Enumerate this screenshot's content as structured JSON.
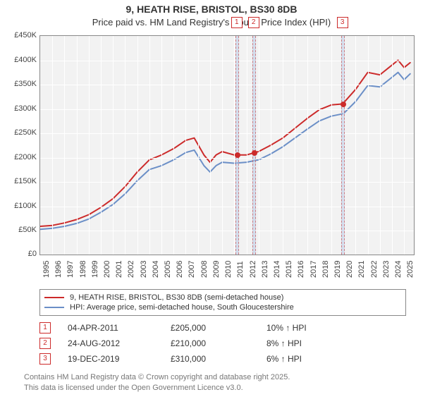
{
  "title_line1": "9, HEATH RISE, BRISTOL, BS30 8DB",
  "title_line2": "Price paid vs. HM Land Registry's House Price Index (HPI)",
  "chart": {
    "type": "line",
    "background_color": "#f2f2f2",
    "grid_color": "#ffffff",
    "border_color": "#888888",
    "x_years": [
      1995,
      1996,
      1997,
      1998,
      1999,
      2000,
      2001,
      2002,
      2003,
      2004,
      2005,
      2006,
      2007,
      2008,
      2009,
      2010,
      2011,
      2012,
      2013,
      2014,
      2015,
      2016,
      2017,
      2018,
      2019,
      2020,
      2021,
      2022,
      2023,
      2024,
      2025
    ],
    "xlim": [
      1995,
      2025.8
    ],
    "ylim": [
      0,
      450000
    ],
    "ytick_step": 50000,
    "ytick_labels": [
      "£0",
      "£50K",
      "£100K",
      "£150K",
      "£200K",
      "£250K",
      "£300K",
      "£350K",
      "£400K",
      "£450K"
    ],
    "series": [
      {
        "name": "9, HEATH RISE, BRISTOL, BS30 8DB (semi-detached house)",
        "color": "#cc2a2a",
        "width": 2,
        "x": [
          1995,
          1996,
          1997,
          1998,
          1999,
          2000,
          2001,
          2002,
          2003,
          2004,
          2005,
          2006,
          2007,
          2007.7,
          2008.5,
          2009,
          2009.5,
          2010,
          2011,
          2012,
          2012.7,
          2013,
          2014,
          2015,
          2016,
          2017,
          2018,
          2019,
          2019.97,
          2020,
          2021,
          2022,
          2023,
          2024,
          2024.5,
          2025,
          2025.5
        ],
        "y": [
          58000,
          60000,
          65000,
          72000,
          82000,
          97000,
          115000,
          140000,
          170000,
          195000,
          205000,
          218000,
          235000,
          240000,
          205000,
          190000,
          205000,
          212000,
          205000,
          205000,
          210000,
          212000,
          225000,
          240000,
          260000,
          280000,
          298000,
          308000,
          310000,
          312000,
          340000,
          375000,
          370000,
          390000,
          400000,
          385000,
          395000
        ]
      },
      {
        "name": "HPI: Average price, semi-detached house, South Gloucestershire",
        "color": "#6b8fc7",
        "width": 2,
        "x": [
          1995,
          1996,
          1997,
          1998,
          1999,
          2000,
          2001,
          2002,
          2003,
          2004,
          2005,
          2006,
          2007,
          2007.7,
          2008.5,
          2009,
          2009.5,
          2010,
          2011,
          2012,
          2013,
          2014,
          2015,
          2016,
          2017,
          2018,
          2019,
          2020,
          2021,
          2022,
          2023,
          2024,
          2024.5,
          2025,
          2025.5
        ],
        "y": [
          52000,
          54000,
          58000,
          64000,
          73000,
          87000,
          103000,
          125000,
          152000,
          175000,
          183000,
          195000,
          210000,
          215000,
          183000,
          170000,
          183000,
          190000,
          188000,
          190000,
          195000,
          207000,
          222000,
          240000,
          258000,
          275000,
          285000,
          290000,
          315000,
          348000,
          345000,
          365000,
          375000,
          360000,
          372000
        ]
      }
    ],
    "event_markers": [
      {
        "n": "1",
        "x": 2011.26,
        "y": 205000,
        "color": "#cc2a2a"
      },
      {
        "n": "2",
        "x": 2012.65,
        "y": 210000,
        "color": "#cc2a2a"
      },
      {
        "n": "3",
        "x": 2019.97,
        "y": 310000,
        "color": "#cc2a2a"
      }
    ],
    "marker_band_width_years": 0.28
  },
  "legend": {
    "items": [
      {
        "color": "#cc2a2a",
        "label": "9, HEATH RISE, BRISTOL, BS30 8DB (semi-detached house)"
      },
      {
        "color": "#6b8fc7",
        "label": "HPI: Average price, semi-detached house, South Gloucestershire"
      }
    ]
  },
  "events": [
    {
      "n": "1",
      "date": "04-APR-2011",
      "price": "£205,000",
      "delta": "10% ↑ HPI"
    },
    {
      "n": "2",
      "date": "24-AUG-2012",
      "price": "£210,000",
      "delta": "8% ↑ HPI"
    },
    {
      "n": "3",
      "date": "19-DEC-2019",
      "price": "£310,000",
      "delta": "6% ↑ HPI"
    }
  ],
  "footer_line1": "Contains HM Land Registry data © Crown copyright and database right 2025.",
  "footer_line2": "This data is licensed under the Open Government Licence v3.0."
}
